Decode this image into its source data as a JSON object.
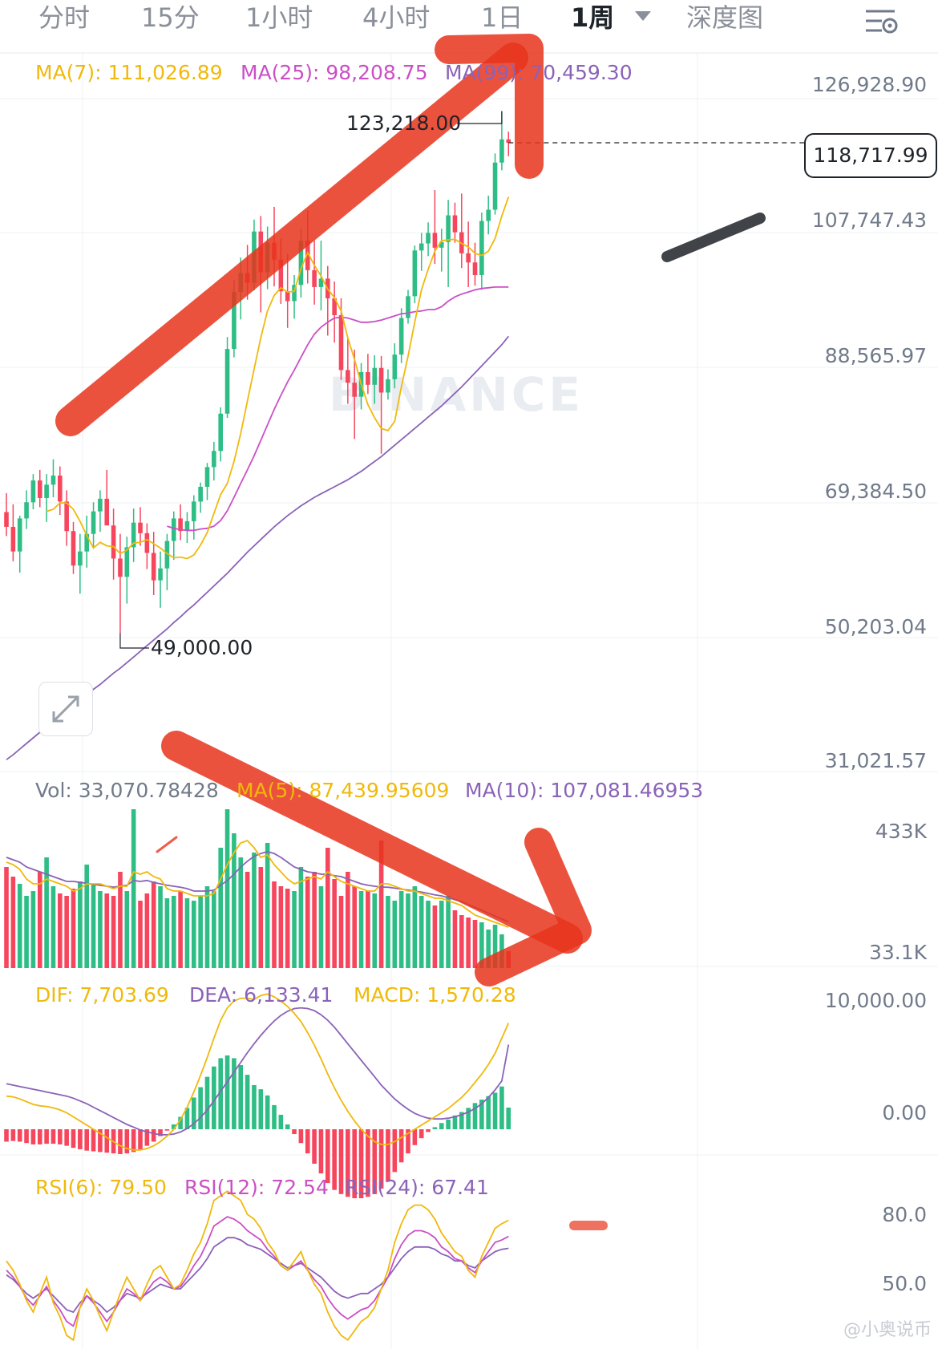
{
  "tabs": [
    {
      "label": "分时",
      "active": false
    },
    {
      "label": "15分",
      "active": false
    },
    {
      "label": "1小时",
      "active": false
    },
    {
      "label": "4小时",
      "active": false
    },
    {
      "label": "1日",
      "active": false
    },
    {
      "label": "1周",
      "active": true
    },
    {
      "label": "深度图",
      "active": false
    }
  ],
  "colors": {
    "up": "#2ebd85",
    "down": "#f6465d",
    "ma7": "#f0b90b",
    "ma25": "#cb4fc5",
    "ma99": "#8a62b8",
    "annotation": "#e8341c",
    "grid": "#eef0f3"
  },
  "icons": {
    "dropdown": "caret-down-icon",
    "settings": "chart-settings-icon",
    "expand": "expand-icon"
  },
  "price_panel": {
    "ma7_label": "MA(7): 111,026.89",
    "ma25_label": "MA(25): 98,208.75",
    "ma99_label": "MA(99): 70,459.30",
    "axis_labels": [
      "126,928.90",
      "107,747.43",
      "88,565.97",
      "69,384.50",
      "50,203.04",
      "31,021.57"
    ],
    "high_label": "123,218.00",
    "low_label": "49,000.00",
    "last_price": "118,717.99",
    "watermark": "BINANCE"
  },
  "volume_panel": {
    "vol_label": "Vol: 33,070.78428",
    "ma5_label": "MA(5): 87,439.95609",
    "ma10_label": "MA(10): 107,081.46953",
    "axis_labels": [
      "433K",
      "33.1K"
    ]
  },
  "macd_panel": {
    "dif_label": "DIF: 7,703.69",
    "dea_label": "DEA: 6,133.41",
    "macd_label": "MACD: 1,570.28",
    "axis_labels": [
      "10,000.00",
      "0.00"
    ]
  },
  "rsi_panel": {
    "rsi6_label": "RSI(6): 79.50",
    "rsi12_label": "RSI(12): 72.54",
    "rsi24_label": "RSI(24): 67.41",
    "axis_labels": [
      "80.0",
      "50.0"
    ]
  },
  "footer_watermark": "@小奥说币",
  "chart_data": {
    "type": "candlestick",
    "interval": "1周",
    "ylim": [
      31021.57,
      126928.9
    ],
    "y_ticks": [
      126928.9,
      107747.43,
      88565.97,
      69384.5,
      50203.04,
      31021.57
    ],
    "candles_ohlc": [
      [
        66200,
        68900,
        62800,
        64100
      ],
      [
        64100,
        67300,
        59200,
        60600
      ],
      [
        60600,
        65700,
        57600,
        65300
      ],
      [
        65300,
        69300,
        63800,
        67600
      ],
      [
        67600,
        71600,
        66600,
        70700
      ],
      [
        70700,
        72200,
        66900,
        68200
      ],
      [
        68200,
        71600,
        64800,
        70100
      ],
      [
        70100,
        73700,
        68300,
        71400
      ],
      [
        71400,
        72700,
        65800,
        67700
      ],
      [
        67700,
        69300,
        61400,
        63500
      ],
      [
        63500,
        64800,
        57400,
        58600
      ],
      [
        58600,
        63100,
        54600,
        60600
      ],
      [
        60600,
        65700,
        58300,
        63100
      ],
      [
        63100,
        67600,
        61100,
        66300
      ],
      [
        66300,
        69300,
        63400,
        68100
      ],
      [
        68100,
        72200,
        65900,
        64300
      ],
      [
        64300,
        66700,
        56600,
        59600
      ],
      [
        59600,
        63100,
        49000,
        57000
      ],
      [
        57000,
        62700,
        53200,
        61200
      ],
      [
        61200,
        66700,
        59100,
        64700
      ],
      [
        64700,
        66900,
        61400,
        63200
      ],
      [
        63200,
        64600,
        58100,
        60400
      ],
      [
        60400,
        63400,
        54400,
        56500
      ],
      [
        56500,
        60600,
        52600,
        58200
      ],
      [
        58200,
        63100,
        55100,
        62100
      ],
      [
        62100,
        66300,
        59400,
        65300
      ],
      [
        65300,
        67300,
        62200,
        63500
      ],
      [
        63500,
        66200,
        61800,
        64900
      ],
      [
        64900,
        68600,
        62300,
        67700
      ],
      [
        67700,
        70400,
        66100,
        69800
      ],
      [
        69800,
        73200,
        67900,
        72600
      ],
      [
        72600,
        76200,
        70700,
        74900
      ],
      [
        74900,
        81100,
        73400,
        80200
      ],
      [
        80200,
        91100,
        79600,
        89400
      ],
      [
        89400,
        99200,
        88200,
        97500
      ],
      [
        97500,
        102400,
        93600,
        100200
      ],
      [
        100200,
        104200,
        96400,
        98800
      ],
      [
        98800,
        107800,
        97700,
        106100
      ],
      [
        106100,
        108300,
        94600,
        100300
      ],
      [
        100300,
        106800,
        97900,
        104500
      ],
      [
        104500,
        109600,
        98300,
        102100
      ],
      [
        102100,
        105100,
        95800,
        97600
      ],
      [
        97600,
        102900,
        92400,
        96200
      ],
      [
        96200,
        99900,
        93700,
        98500
      ],
      [
        98500,
        106500,
        96700,
        104800
      ],
      [
        104800,
        109100,
        98700,
        100600
      ],
      [
        100600,
        104800,
        95700,
        98200
      ],
      [
        98200,
        104800,
        94900,
        99400
      ],
      [
        99400,
        101200,
        91300,
        96600
      ],
      [
        96600,
        99000,
        90300,
        94200
      ],
      [
        94200,
        96600,
        85000,
        86400
      ],
      [
        86400,
        91000,
        81600,
        84600
      ],
      [
        84600,
        89300,
        76600,
        82600
      ],
      [
        82600,
        87400,
        80800,
        86100
      ],
      [
        86100,
        88700,
        83000,
        84300
      ],
      [
        84300,
        88500,
        81600,
        86700
      ],
      [
        86700,
        88400,
        74500,
        83200
      ],
      [
        83200,
        86500,
        82200,
        85100
      ],
      [
        85100,
        90200,
        83800,
        88600
      ],
      [
        88600,
        95200,
        87400,
        93800
      ],
      [
        93800,
        97800,
        93000,
        96900
      ],
      [
        96900,
        104100,
        95900,
        103400
      ],
      [
        103400,
        105900,
        100500,
        104400
      ],
      [
        104400,
        107400,
        102600,
        105900
      ],
      [
        105900,
        112000,
        101500,
        103800
      ],
      [
        103800,
        106500,
        100400,
        104600
      ],
      [
        104600,
        110600,
        98200,
        108400
      ],
      [
        108400,
        110200,
        104500,
        106000
      ],
      [
        106000,
        111500,
        100900,
        103000
      ],
      [
        103000,
        107500,
        98200,
        101700
      ],
      [
        101700,
        104500,
        98400,
        99900
      ],
      [
        99900,
        108800,
        97800,
        107600
      ],
      [
        107600,
        111200,
        105700,
        109200
      ],
      [
        109200,
        117200,
        108500,
        115900
      ],
      [
        115900,
        123218,
        114800,
        119200
      ],
      [
        119200,
        120300,
        116800,
        118718
      ]
    ],
    "ma7": [
      null,
      null,
      null,
      null,
      null,
      null,
      66300,
      66600,
      67500,
      67500,
      66600,
      64900,
      62900,
      61100,
      61900,
      61400,
      61300,
      60300,
      60800,
      61800,
      61900,
      62300,
      61700,
      61100,
      60300,
      59700,
      59800,
      59600,
      60100,
      61500,
      63300,
      66000,
      68700,
      70300,
      73400,
      77400,
      82000,
      86500,
      91000,
      94800,
      97000,
      98100,
      97500,
      97600,
      100800,
      103100,
      101300,
      99800,
      97900,
      96700,
      94800,
      91000,
      87900,
      84400,
      81500,
      79600,
      78100,
      77800,
      79100,
      84000,
      88400,
      93200,
      97800,
      100700,
      103300,
      104800,
      104900,
      105000,
      104400,
      103900,
      103000,
      102700,
      103300,
      105100,
      108300,
      111027
    ],
    "ma25": [
      null,
      null,
      null,
      null,
      null,
      null,
      null,
      null,
      null,
      null,
      null,
      null,
      null,
      null,
      null,
      null,
      null,
      null,
      null,
      null,
      null,
      null,
      null,
      null,
      64200,
      63900,
      63700,
      63600,
      63600,
      63800,
      63900,
      64200,
      65000,
      66400,
      68300,
      70300,
      72200,
      74200,
      76400,
      78600,
      80800,
      82800,
      84700,
      86400,
      88200,
      90000,
      91500,
      92500,
      93200,
      93800,
      93900,
      93800,
      93500,
      93200,
      93200,
      93300,
      93500,
      93800,
      94100,
      94400,
      94500,
      94700,
      94800,
      95000,
      95000,
      95400,
      96200,
      96800,
      97200,
      97500,
      97800,
      98000,
      98100,
      98200,
      98208,
      98209
    ],
    "ma99": [
      31000,
      31700,
      32500,
      33300,
      34100,
      34900,
      35700,
      36400,
      37200,
      37900,
      38700,
      39500,
      40200,
      41000,
      41700,
      42500,
      43300,
      44000,
      44800,
      45600,
      46400,
      47200,
      48000,
      48800,
      49600,
      50500,
      51300,
      52200,
      53000,
      53900,
      54800,
      55700,
      56600,
      57500,
      58500,
      59500,
      60500,
      61400,
      62300,
      63200,
      64100,
      64900,
      65700,
      66400,
      67100,
      67700,
      68300,
      68800,
      69300,
      69800,
      70300,
      70800,
      71400,
      72000,
      72700,
      73400,
      74100,
      74900,
      75700,
      76500,
      77300,
      78100,
      78900,
      79700,
      80500,
      81300,
      82200,
      83100,
      84000,
      85000,
      86000,
      87000,
      88000,
      89000,
      90000,
      91200
    ],
    "volume": [
      210,
      190,
      175,
      150,
      160,
      200,
      230,
      170,
      155,
      150,
      165,
      180,
      215,
      175,
      160,
      155,
      150,
      200,
      160,
      330,
      140,
      155,
      180,
      170,
      145,
      150,
      160,
      145,
      140,
      150,
      170,
      160,
      250,
      330,
      280,
      230,
      200,
      240,
      210,
      260,
      180,
      170,
      165,
      160,
      210,
      190,
      200,
      170,
      250,
      185,
      150,
      200,
      170,
      160,
      160,
      155,
      265,
      150,
      140,
      160,
      155,
      170,
      150,
      140,
      130,
      140,
      150,
      120,
      110,
      105,
      100,
      95,
      80,
      90,
      70,
      35
    ],
    "vol_ma5": [
      220,
      215,
      205,
      185,
      175,
      175,
      185,
      180,
      175,
      170,
      160,
      165,
      175,
      175,
      175,
      170,
      165,
      170,
      170,
      200,
      195,
      200,
      190,
      185,
      165,
      160,
      160,
      155,
      150,
      150,
      150,
      155,
      185,
      215,
      240,
      260,
      265,
      250,
      230,
      235,
      215,
      200,
      185,
      175,
      180,
      185,
      190,
      185,
      200,
      190,
      180,
      175,
      170,
      165,
      160,
      160,
      175,
      175,
      170,
      165,
      160,
      160,
      155,
      150,
      145,
      145,
      140,
      135,
      130,
      120,
      110,
      105,
      100,
      95,
      90,
      85
    ],
    "vol_ma10": [
      230,
      225,
      220,
      210,
      205,
      200,
      195,
      190,
      185,
      180,
      180,
      178,
      176,
      174,
      172,
      170,
      168,
      170,
      172,
      182,
      180,
      182,
      178,
      175,
      172,
      170,
      168,
      165,
      160,
      160,
      160,
      162,
      172,
      182,
      195,
      210,
      222,
      232,
      238,
      242,
      238,
      230,
      220,
      210,
      205,
      200,
      198,
      195,
      195,
      192,
      190,
      185,
      180,
      175,
      172,
      170,
      168,
      168,
      166,
      164,
      162,
      160,
      158,
      155,
      152,
      150,
      146,
      142,
      138,
      132,
      126,
      120,
      114,
      108,
      102,
      96
    ],
    "macd_dif": [
      2400,
      2350,
      2200,
      2000,
      1800,
      1700,
      1650,
      1550,
      1400,
      1200,
      900,
      600,
      300,
      0,
      -300,
      -600,
      -900,
      -1200,
      -1400,
      -1500,
      -1500,
      -1400,
      -1200,
      -900,
      -500,
      0,
      700,
      1600,
      2700,
      3900,
      5200,
      6600,
      7900,
      8800,
      9300,
      9500,
      9500,
      9400,
      9700,
      9800,
      9600,
      9300,
      8900,
      8400,
      7800,
      7000,
      6100,
      5100,
      4000,
      3000,
      2100,
      1300,
      600,
      0,
      -500,
      -900,
      -1100,
      -1100,
      -900,
      -600,
      -300,
      0,
      300,
      600,
      900,
      1200,
      1500,
      1900,
      2300,
      2800,
      3400,
      4000,
      4700,
      5500,
      6600,
      7704
    ],
    "macd_dea": [
      3300,
      3200,
      3100,
      3000,
      2900,
      2800,
      2700,
      2600,
      2500,
      2400,
      2250,
      2050,
      1850,
      1600,
      1350,
      1100,
      850,
      600,
      350,
      150,
      -50,
      -200,
      -300,
      -400,
      -400,
      -350,
      -200,
      50,
      400,
      850,
      1400,
      2050,
      2750,
      3450,
      4150,
      4850,
      5550,
      6200,
      6800,
      7350,
      7850,
      8250,
      8550,
      8750,
      8800,
      8750,
      8600,
      8300,
      7900,
      7400,
      6800,
      6200,
      5600,
      5000,
      4400,
      3800,
      3200,
      2700,
      2200,
      1800,
      1450,
      1150,
      950,
      800,
      750,
      750,
      800,
      900,
      1050,
      1250,
      1500,
      1850,
      2300,
      2850,
      3500,
      6133
    ],
    "macd_hist": [
      -900,
      -850,
      -900,
      -1000,
      -1100,
      -1100,
      -1050,
      -1050,
      -1100,
      -1200,
      -1350,
      -1450,
      -1550,
      -1600,
      -1650,
      -1700,
      -1750,
      -1800,
      -1750,
      -1650,
      -1450,
      -1200,
      -900,
      -500,
      -100,
      350,
      900,
      1550,
      2300,
      3050,
      3800,
      4550,
      5150,
      5350,
      5150,
      4650,
      3950,
      3200,
      2900,
      2450,
      1750,
      1050,
      350,
      -350,
      -1000,
      -1750,
      -2500,
      -3200,
      -3900,
      -4400,
      -4700,
      -4900,
      -5000,
      -5000,
      -4900,
      -4700,
      -4300,
      -3800,
      -3100,
      -2400,
      -1750,
      -1150,
      -650,
      -200,
      150,
      450,
      700,
      1000,
      1250,
      1550,
      1900,
      2150,
      2400,
      2650,
      3100,
      1570
    ],
    "rsi6": [
      62,
      58,
      52,
      45,
      40,
      48,
      55,
      44,
      38,
      30,
      28,
      42,
      50,
      45,
      38,
      32,
      40,
      48,
      55,
      50,
      45,
      52,
      58,
      60,
      55,
      50,
      52,
      58,
      65,
      70,
      78,
      88,
      90,
      92,
      90,
      88,
      82,
      80,
      76,
      70,
      66,
      60,
      58,
      62,
      66,
      58,
      52,
      48,
      40,
      34,
      30,
      28,
      32,
      36,
      38,
      42,
      50,
      58,
      70,
      78,
      84,
      86,
      86,
      84,
      80,
      74,
      70,
      66,
      64,
      58,
      55,
      64,
      70,
      76,
      78,
      79.5
    ],
    "rsi12": [
      58,
      55,
      51,
      46,
      43,
      47,
      51,
      45,
      41,
      36,
      34,
      42,
      47,
      44,
      40,
      36,
      40,
      45,
      50,
      48,
      45,
      49,
      53,
      55,
      53,
      50,
      51,
      55,
      60,
      64,
      70,
      77,
      79,
      81,
      80,
      78,
      75,
      73,
      71,
      67,
      64,
      60,
      58,
      60,
      62,
      58,
      54,
      51,
      46,
      42,
      39,
      37,
      39,
      41,
      42,
      45,
      50,
      55,
      63,
      69,
      73,
      75,
      75,
      74,
      72,
      68,
      66,
      63,
      62,
      59,
      57,
      62,
      66,
      70,
      71,
      72.54
    ],
    "rsi24": [
      56,
      54,
      51,
      48,
      46,
      48,
      50,
      47,
      44,
      41,
      40,
      44,
      47,
      45,
      43,
      40,
      42,
      45,
      48,
      47,
      46,
      48,
      50,
      52,
      51,
      50,
      50,
      53,
      56,
      59,
      63,
      68,
      70,
      72,
      72,
      71,
      69,
      68,
      67,
      65,
      63,
      61,
      59,
      60,
      61,
      59,
      57,
      55,
      52,
      49,
      47,
      46,
      47,
      48,
      48,
      50,
      52,
      55,
      59,
      63,
      66,
      68,
      68,
      68,
      67,
      65,
      64,
      62,
      62,
      60,
      59,
      62,
      64,
      66,
      67,
      67.41
    ]
  }
}
